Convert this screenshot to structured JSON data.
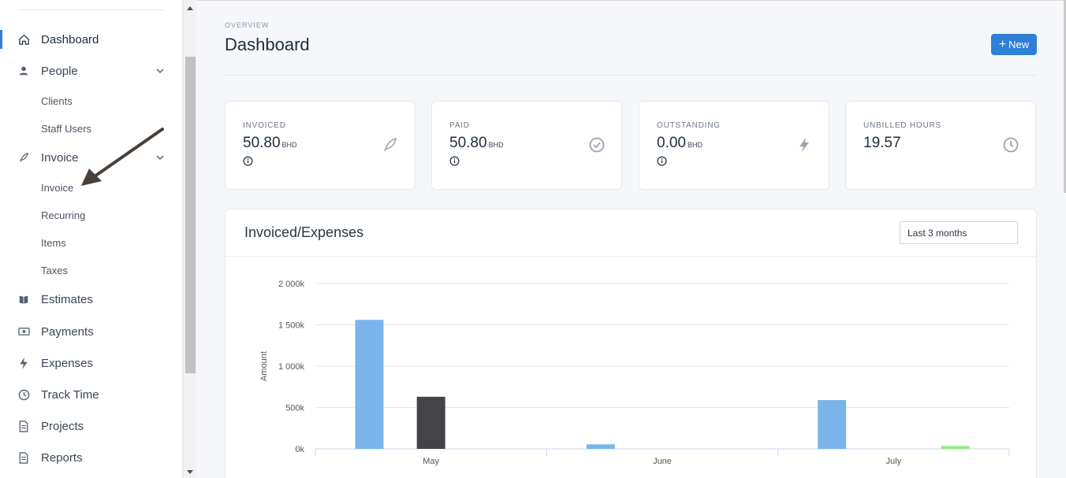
{
  "sidebar": {
    "items": [
      {
        "label": "Dashboard",
        "icon": "home-icon"
      },
      {
        "label": "People",
        "icon": "person-icon"
      },
      {
        "label": "Invoice",
        "icon": "feather-icon"
      },
      {
        "label": "Estimates",
        "icon": "book-icon"
      },
      {
        "label": "Payments",
        "icon": "money-icon"
      },
      {
        "label": "Expenses",
        "icon": "bolt-icon"
      },
      {
        "label": "Track Time",
        "icon": "clock-icon"
      },
      {
        "label": "Projects",
        "icon": "document-icon"
      },
      {
        "label": "Reports",
        "icon": "document-icon"
      }
    ],
    "people_sub": [
      "Clients",
      "Staff Users"
    ],
    "invoice_sub": [
      "Invoice",
      "Recurring",
      "Items",
      "Taxes"
    ]
  },
  "header": {
    "overline": "OVERVIEW",
    "title": "Dashboard",
    "new_button": "New"
  },
  "cards": [
    {
      "label": "INVOICED",
      "value": "50.80",
      "unit": "BHD",
      "icon": "feather-icon"
    },
    {
      "label": "PAID",
      "value": "50.80",
      "unit": "BHD",
      "icon": "check-circle-icon"
    },
    {
      "label": "OUTSTANDING",
      "value": "0.00",
      "unit": "BHD",
      "icon": "bolt-icon"
    },
    {
      "label": "UNBILLED HOURS",
      "value": "19.57",
      "unit": "",
      "icon": "clock-icon"
    }
  ],
  "chart_section": {
    "title": "Invoiced/Expenses",
    "period": "Last 3 months"
  },
  "colors": {
    "accent": "#2e7fd6",
    "invoiced": "#7cb5ec",
    "expenses": "#434348",
    "third": "#90ed7d"
  },
  "chart_data": {
    "type": "bar",
    "categories": [
      "May",
      "June",
      "July"
    ],
    "series": [
      {
        "values": [
          1560000,
          55000,
          590000
        ],
        "color": "#7cb5ec"
      },
      {
        "values": [
          630000,
          0,
          0
        ],
        "color": "#434348"
      },
      {
        "values": [
          0,
          0,
          35000
        ],
        "color": "#90ed7d"
      }
    ],
    "ylabel": "Amount",
    "yticks": [
      "0k",
      "500k",
      "1 000k",
      "1 500k",
      "2 000k"
    ],
    "ylim": [
      0,
      2000000
    ],
    "grid": true
  }
}
